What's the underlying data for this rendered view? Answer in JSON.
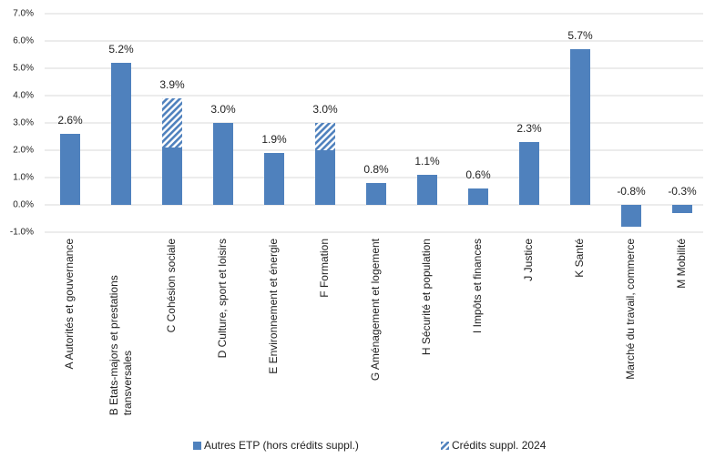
{
  "chart_data": {
    "type": "stacked_bar",
    "categories": [
      "A Autorités et gouvernance",
      "B Etats-majors et prestations transversales",
      "C Cohésion sociale",
      "D Culture, sport et loisirs",
      "E Environnement et énergie",
      "F Formation",
      "G Aménagement et logement",
      "H Sécurité et population",
      "I Impôts et finances",
      "J Justice",
      "K Santé",
      "Marché du travail, commerce",
      "M Mobilité"
    ],
    "series": [
      {
        "name": "Autres ETP (hors crédits suppl.)",
        "color": "#4f81bd",
        "values": [
          2.6,
          5.2,
          2.1,
          3.0,
          1.9,
          2.0,
          0.8,
          1.1,
          0.6,
          2.3,
          5.7,
          -0.8,
          -0.3
        ]
      },
      {
        "name": "Crédits suppl. 2024",
        "color": "#4f81bd",
        "pattern": "hatch",
        "values": [
          null,
          null,
          1.8,
          null,
          null,
          1.0,
          null,
          null,
          null,
          null,
          null,
          null,
          null
        ]
      }
    ],
    "total_labels": [
      "2.6%",
      "5.2%",
      "3.9%",
      "3.0%",
      "1.9%",
      "3.0%",
      "0.8%",
      "1.1%",
      "0.6%",
      "2.3%",
      "5.7%",
      "-0.8%",
      "-0.3%"
    ],
    "ylim": [
      -1,
      7
    ],
    "yticks": [
      {
        "value": -1,
        "label": "-1.0%"
      },
      {
        "value": 0,
        "label": "0.0%"
      },
      {
        "value": 1,
        "label": "1.0%"
      },
      {
        "value": 2,
        "label": "2.0%"
      },
      {
        "value": 3,
        "label": "3.0%"
      },
      {
        "value": 4,
        "label": "4.0%"
      },
      {
        "value": 5,
        "label": "5.0%"
      },
      {
        "value": 6,
        "label": "6.0%"
      },
      {
        "value": 7,
        "label": "7.0%"
      }
    ],
    "grid": true,
    "legend": "bottom"
  }
}
